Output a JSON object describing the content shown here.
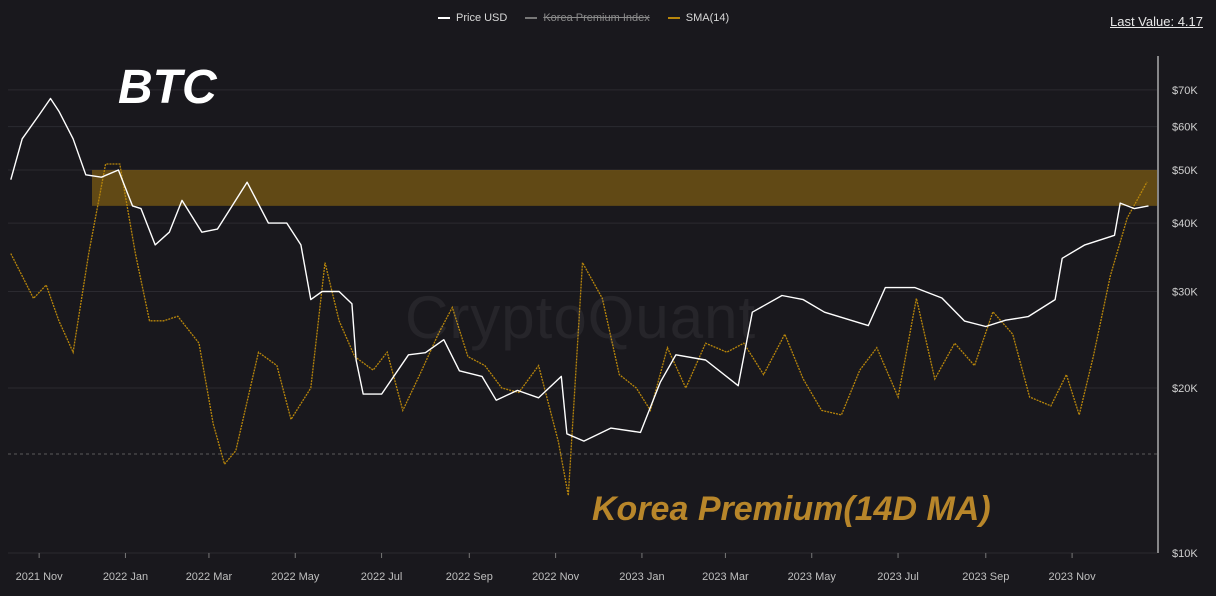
{
  "legend": {
    "price": "Price USD",
    "korea": "Korea Premium Index",
    "sma": "SMA(14)"
  },
  "last_value": "Last Value: 4.17",
  "watermark": "CryptoQuant",
  "title": "BTC",
  "annotation": "Korea Premium(14D MA)",
  "colors": {
    "price": "#ffffff",
    "sma": "#b8860b",
    "band": "#7a5a13",
    "background": "#19181d"
  },
  "chart_data": {
    "type": "line",
    "x_ticks": [
      "2021 Nov",
      "2022 Jan",
      "2022 Mar",
      "2022 May",
      "2022 Jul",
      "2022 Sep",
      "2022 Nov",
      "2023 Jan",
      "2023 Mar",
      "2023 May",
      "2023 Jul",
      "2023 Sep",
      "2023 Nov"
    ],
    "y_scale": "log",
    "y_ticks": [
      "$10K",
      "$20K",
      "$30K",
      "$40K",
      "$50K",
      "$60K",
      "$70K"
    ],
    "y_tick_values": [
      10000,
      20000,
      30000,
      40000,
      50000,
      60000,
      70000
    ],
    "ylim": [
      10000,
      80000
    ],
    "highlight_band_usd": [
      43000,
      50000
    ],
    "series": [
      {
        "name": "Price USD",
        "x": [
          "2021-10-12",
          "2021-10-20",
          "2021-11-01",
          "2021-11-09",
          "2021-11-15",
          "2021-11-25",
          "2021-12-04",
          "2021-12-15",
          "2021-12-27",
          "2022-01-06",
          "2022-01-12",
          "2022-01-22",
          "2022-02-01",
          "2022-02-10",
          "2022-02-24",
          "2022-03-07",
          "2022-03-28",
          "2022-04-12",
          "2022-04-25",
          "2022-05-05",
          "2022-05-12",
          "2022-05-20",
          "2022-06-01",
          "2022-06-10",
          "2022-06-13",
          "2022-06-18",
          "2022-07-01",
          "2022-07-20",
          "2022-08-01",
          "2022-08-14",
          "2022-08-25",
          "2022-09-10",
          "2022-09-20",
          "2022-10-05",
          "2022-10-20",
          "2022-11-05",
          "2022-11-09",
          "2022-11-21",
          "2022-12-10",
          "2022-12-31",
          "2023-01-14",
          "2023-01-25",
          "2023-02-15",
          "2023-03-10",
          "2023-03-20",
          "2023-04-10",
          "2023-04-25",
          "2023-05-10",
          "2023-06-10",
          "2023-06-22",
          "2023-07-13",
          "2023-08-01",
          "2023-08-17",
          "2023-09-01",
          "2023-09-15",
          "2023-10-01",
          "2023-10-20",
          "2023-10-25",
          "2023-11-10",
          "2023-12-01",
          "2023-12-05",
          "2023-12-15",
          "2023-12-25"
        ],
        "values": [
          48000,
          57000,
          63000,
          67500,
          64000,
          57000,
          49000,
          48500,
          50000,
          43000,
          42500,
          36500,
          38500,
          44000,
          38500,
          39000,
          47500,
          40000,
          40000,
          36500,
          29000,
          30000,
          30000,
          28500,
          22500,
          19500,
          19500,
          23000,
          23200,
          24500,
          21500,
          21000,
          19000,
          19800,
          19200,
          21000,
          16500,
          16000,
          16900,
          16600,
          20500,
          23000,
          22500,
          20200,
          27500,
          29500,
          29000,
          27500,
          26000,
          30500,
          30500,
          29200,
          26500,
          25900,
          26600,
          27000,
          29000,
          34500,
          36500,
          38000,
          43500,
          42500,
          43000
        ]
      },
      {
        "name": "SMA(14)",
        "x": [
          "2021-10-12",
          "2021-10-20",
          "2021-10-28",
          "2021-11-06",
          "2021-11-15",
          "2021-11-25",
          "2021-12-06",
          "2021-12-18",
          "2021-12-28",
          "2022-01-08",
          "2022-01-18",
          "2022-01-28",
          "2022-02-07",
          "2022-02-22",
          "2022-03-04",
          "2022-03-12",
          "2022-03-20",
          "2022-04-05",
          "2022-04-18",
          "2022-04-28",
          "2022-05-12",
          "2022-05-22",
          "2022-06-01",
          "2022-06-12",
          "2022-06-25",
          "2022-07-05",
          "2022-07-16",
          "2022-07-28",
          "2022-08-10",
          "2022-08-20",
          "2022-08-31",
          "2022-09-12",
          "2022-09-24",
          "2022-10-06",
          "2022-10-20",
          "2022-11-03",
          "2022-11-10",
          "2022-11-20",
          "2022-12-04",
          "2022-12-16",
          "2022-12-28",
          "2023-01-07",
          "2023-01-19",
          "2023-02-01",
          "2023-02-15",
          "2023-03-02",
          "2023-03-14",
          "2023-03-28",
          "2023-04-12",
          "2023-04-25",
          "2023-05-08",
          "2023-05-22",
          "2023-06-04",
          "2023-06-16",
          "2023-07-01",
          "2023-07-14",
          "2023-07-27",
          "2023-08-10",
          "2023-08-24",
          "2023-09-06",
          "2023-09-20",
          "2023-10-02",
          "2023-10-17",
          "2023-10-28",
          "2023-11-06",
          "2023-11-16",
          "2023-11-28",
          "2023-12-10",
          "2023-12-24"
        ],
        "values": [
          3.0,
          2.5,
          2.0,
          2.3,
          1.5,
          0.8,
          3.0,
          5.0,
          5.0,
          3.0,
          1.5,
          1.5,
          1.6,
          1.0,
          -0.8,
          -1.7,
          -1.4,
          0.8,
          0.5,
          -0.7,
          0.0,
          2.8,
          1.5,
          0.7,
          0.4,
          0.8,
          -0.5,
          0.3,
          1.2,
          1.8,
          0.7,
          0.5,
          0.0,
          -0.1,
          0.5,
          -1.2,
          -2.4,
          2.8,
          2.0,
          0.3,
          0.0,
          -0.5,
          0.9,
          0.0,
          1.0,
          0.8,
          1.0,
          0.3,
          1.2,
          0.2,
          -0.5,
          -0.6,
          0.4,
          0.9,
          -0.2,
          2.0,
          0.2,
          1.0,
          0.5,
          1.7,
          1.2,
          -0.2,
          -0.4,
          0.3,
          -0.6,
          0.7,
          2.5,
          3.8,
          4.6
        ]
      }
    ],
    "series_hidden": [
      "Korea Premium Index"
    ]
  }
}
